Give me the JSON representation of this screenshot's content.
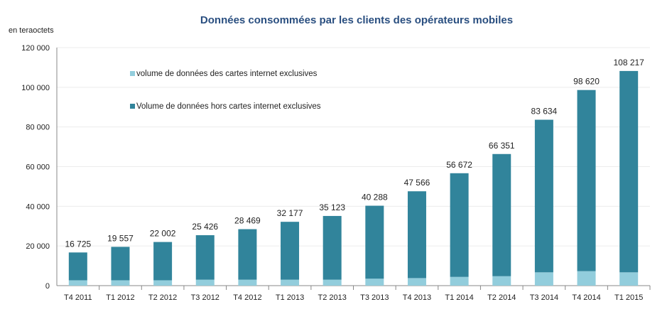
{
  "chart_data": {
    "type": "bar",
    "stacked": true,
    "title": "Données consommées par les clients des opérateurs mobiles",
    "ylabel": "en teraoctets",
    "ylim": [
      0,
      120000
    ],
    "yticks": [
      0,
      20000,
      40000,
      60000,
      80000,
      100000,
      120000
    ],
    "ytick_labels": [
      "0",
      "20 000",
      "40 000",
      "60 000",
      "80 000",
      "100 000",
      "120 000"
    ],
    "grid": true,
    "legend_position": "top-left",
    "categories": [
      "T4 2011",
      "T1 2012",
      "T2 2012",
      "T3 2012",
      "T4 2012",
      "T1 2013",
      "T2 2013",
      "T3 2013",
      "T4 2013",
      "T1 2014",
      "T2 2014",
      "T3 2014",
      "T4 2014",
      "T1 2015"
    ],
    "totals": [
      16725,
      19557,
      22002,
      25426,
      28469,
      32177,
      35123,
      40288,
      47566,
      56672,
      66351,
      83634,
      98620,
      108217
    ],
    "total_labels": [
      "16 725",
      "19 557",
      "22 002",
      "25 426",
      "28 469",
      "32 177",
      "35 123",
      "40 288",
      "47 566",
      "56 672",
      "66 351",
      "83 634",
      "98 620",
      "108 217"
    ],
    "series": [
      {
        "name": "volume de données des cartes internet exclusives",
        "color": "#92cddc",
        "values": [
          2700,
          2700,
          2700,
          3000,
          3000,
          3000,
          3000,
          3500,
          3800,
          4400,
          4750,
          6700,
          7300,
          6700
        ]
      },
      {
        "name": "Volume de données hors cartes internet exclusives",
        "color": "#31849b",
        "values": [
          14025,
          16857,
          19302,
          22426,
          25469,
          29177,
          32123,
          36788,
          43766,
          52272,
          61601,
          76934,
          91320,
          101517
        ]
      }
    ]
  }
}
